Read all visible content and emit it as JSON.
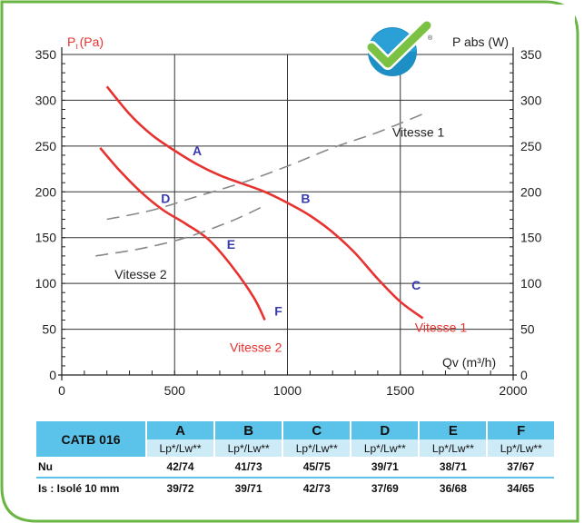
{
  "chart_data": {
    "type": "line",
    "y_left_label": "P",
    "y_left_label_sub": "t",
    "y_left_label_unit": "(Pa)",
    "y_right_label": "P abs (W)",
    "x_axis_label": "Qv (m³/h)",
    "x_ticks": [
      "0",
      "500",
      "1000",
      "1500",
      "2000"
    ],
    "y_left_ticks": [
      "0",
      "50",
      "100",
      "150",
      "200",
      "250",
      "300",
      "350"
    ],
    "y_right_ticks": [
      "0",
      "50",
      "100",
      "150",
      "200",
      "250",
      "300",
      "350"
    ],
    "xlim": [
      0,
      2000
    ],
    "ylim": [
      0,
      350
    ],
    "grid": true,
    "colors": {
      "pressure": "#e8322f",
      "power": "#888888",
      "points": "#3a3ab0",
      "frame": "#6bb544"
    },
    "series": [
      {
        "name": "Vitesse 1",
        "kind": "pressure",
        "x": [
          200,
          300,
          400,
          500,
          600,
          700,
          800,
          900,
          1000,
          1100,
          1200,
          1300,
          1400,
          1500,
          1600
        ],
        "y": [
          315,
          285,
          262,
          245,
          230,
          218,
          209,
          200,
          188,
          174,
          156,
          133,
          105,
          80,
          62
        ]
      },
      {
        "name": "Vitesse 2",
        "kind": "pressure",
        "x": [
          170,
          250,
          350,
          450,
          550,
          650,
          750,
          850,
          900
        ],
        "y": [
          248,
          225,
          200,
          180,
          165,
          148,
          120,
          85,
          60
        ]
      },
      {
        "name": "Vitesse 1",
        "kind": "power",
        "x": [
          200,
          400,
          600,
          800,
          1000,
          1200,
          1400,
          1600
        ],
        "y": [
          170,
          180,
          195,
          210,
          228,
          248,
          265,
          285
        ]
      },
      {
        "name": "Vitesse 2",
        "kind": "power",
        "x": [
          150,
          350,
          550,
          750,
          900
        ],
        "y": [
          130,
          138,
          150,
          168,
          185
        ]
      }
    ],
    "points": [
      {
        "label": "A",
        "x": 600,
        "y": 245
      },
      {
        "label": "B",
        "x": 1080,
        "y": 193
      },
      {
        "label": "C",
        "x": 1570,
        "y": 98
      },
      {
        "label": "D",
        "x": 460,
        "y": 193
      },
      {
        "label": "E",
        "x": 750,
        "y": 143
      },
      {
        "label": "F",
        "x": 960,
        "y": 70
      }
    ],
    "series_labels": [
      {
        "text": "Vitesse 1",
        "kind": "power",
        "x": 1580,
        "y": 265
      },
      {
        "text": "Vitesse 2",
        "kind": "power",
        "x": 350,
        "y": 110
      },
      {
        "text": "Vitesse 1",
        "kind": "pressure",
        "x": 1680,
        "y": 52
      },
      {
        "text": "Vitesse 2",
        "kind": "pressure",
        "x": 860,
        "y": 30
      }
    ]
  },
  "logo": {
    "name": "checkmark-logo"
  },
  "table": {
    "model": "CATB 016",
    "columns": [
      "A",
      "B",
      "C",
      "D",
      "E",
      "F"
    ],
    "subheader": "Lp*/Lw**",
    "rows": [
      {
        "label": "Nu",
        "values": [
          "42/74",
          "41/73",
          "45/75",
          "39/71",
          "38/71",
          "37/67"
        ]
      },
      {
        "label": "Is : Isolé 10 mm",
        "values": [
          "39/72",
          "39/71",
          "42/73",
          "37/69",
          "36/68",
          "34/65"
        ]
      }
    ]
  }
}
